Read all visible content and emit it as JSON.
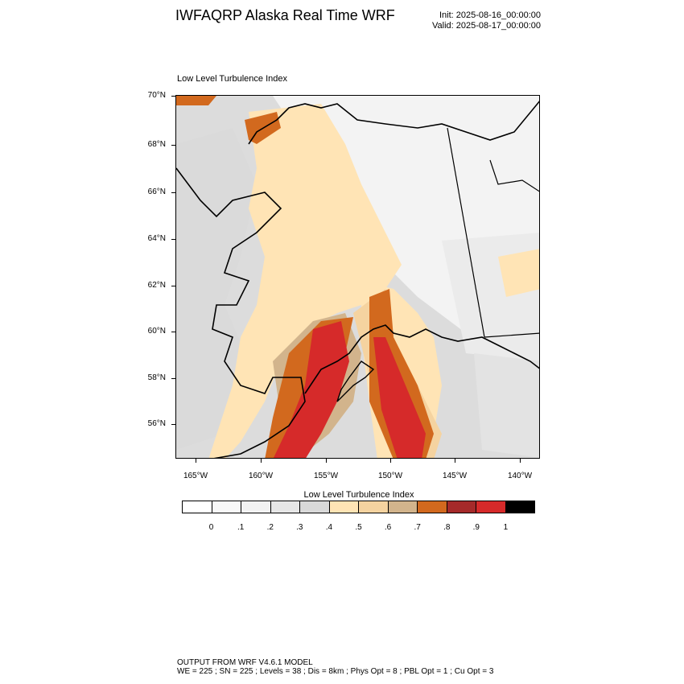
{
  "header": {
    "title": "IWFAQRP Alaska Real Time WRF",
    "init": "Init: 2025-08-16_00:00:00",
    "valid": "Valid: 2025-08-17_00:00:00"
  },
  "panel": {
    "title": "Low Level Turbulence Index"
  },
  "map": {
    "lat_labels": [
      "70°N",
      "68°N",
      "66°N",
      "64°N",
      "62°N",
      "60°N",
      "58°N",
      "56°N"
    ],
    "lon_labels": [
      "165°W",
      "160°W",
      "155°W",
      "150°W",
      "145°W",
      "140°W"
    ],
    "colors": {
      "land_low": "#d9d9d9",
      "land_pale": "#f2f2f2",
      "moderate": "#ffe0b0",
      "moderate_high": "#f7d39d",
      "high": "#d2b48c",
      "orange": "#d2691e",
      "red": "#d62a2a",
      "dark_red": "#a52a2a",
      "coast": "#000000"
    }
  },
  "colorbar": {
    "title": "Low Level Turbulence Index",
    "labels": [
      "0",
      ".1",
      ".2",
      ".3",
      ".4",
      ".5",
      ".6",
      ".7",
      ".8",
      ".9",
      "1"
    ],
    "colors": [
      "#ffffff",
      "#f8f8f8",
      "#f2f2f2",
      "#e6e6e6",
      "#d9d9d9",
      "#ffe4b5",
      "#f5d3a0",
      "#d2b48c",
      "#d2691e",
      "#a52a2a",
      "#d62a2a",
      "#000000"
    ]
  },
  "footer": {
    "line1": "OUTPUT FROM WRF V4.6.1 MODEL",
    "line2": "WE = 225 ; SN = 225 ; Levels = 38 ; Dis = 8km ; Phys Opt = 8 ; PBL Opt = 1 ; Cu Opt = 3"
  }
}
